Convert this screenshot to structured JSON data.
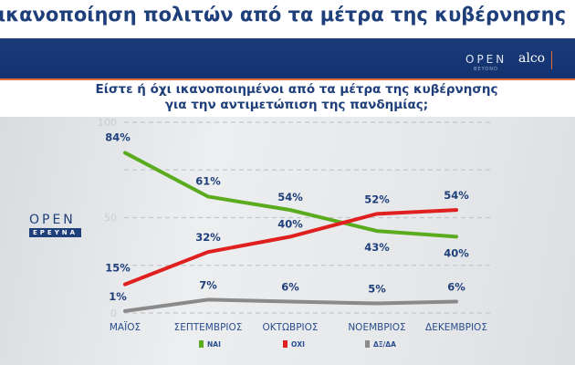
{
  "page_title": "ικανοποίηση πολιτών από τα μέτρα της κυβέρνησης",
  "banner": {
    "logo_open": "OPEN",
    "logo_beyond": "BEYOND",
    "logo_alco": "alco"
  },
  "side_logo": {
    "top": "OPEN",
    "bottom": "ΕΡΕΥΝΑ"
  },
  "chart_data": {
    "type": "line",
    "title": "Είστε ή όχι ικανοποιημένοι από τα μέτρα της κυβέρνησης",
    "subtitle": "για την αντιμετώπιση της πανδημίας;",
    "categories": [
      "ΜΑΪΟΣ",
      "ΣΕΠΤΕΜΒΡΙΟΣ",
      "ΟΚΤΩΒΡΙΟΣ",
      "ΝΟΕΜΒΡΙΟΣ",
      "ΔΕΚΕΜΒΡΙΟΣ"
    ],
    "ylim": [
      0,
      100
    ],
    "yticks": [
      "0",
      "50",
      "100"
    ],
    "grid": true,
    "legend_position": "bottom",
    "series": [
      {
        "name": "ΝΑΙ",
        "color": "#5aab1e",
        "values": [
          84,
          61,
          54,
          43,
          40
        ],
        "labels": [
          "84%",
          "61%",
          "54%",
          "43%",
          "40%"
        ]
      },
      {
        "name": "ΟΧΙ",
        "color": "#e01f1f",
        "values": [
          15,
          32,
          40,
          52,
          54
        ],
        "labels": [
          "15%",
          "32%",
          "40%",
          "52%",
          "54%"
        ]
      },
      {
        "name": "ΔΞ/ΔΑ",
        "color": "#8a8a8a",
        "values": [
          1,
          7,
          6,
          5,
          6
        ],
        "labels": [
          "1%",
          "7%",
          "6%",
          "5%",
          "6%"
        ]
      }
    ]
  }
}
